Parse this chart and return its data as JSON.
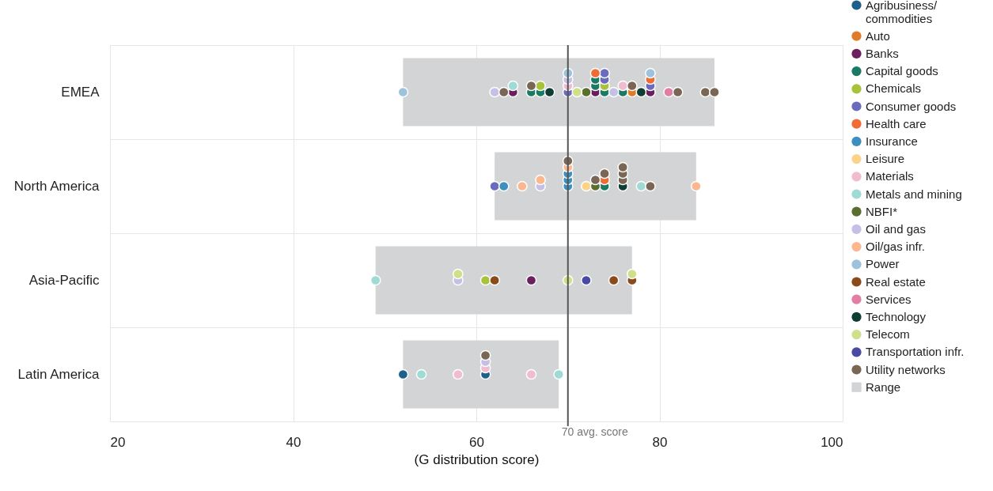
{
  "chart_data": {
    "type": "scatter",
    "orientation": "horizontal",
    "categories": [
      "EMEA",
      "North America",
      "Asia-Pacific",
      "Latin America"
    ],
    "xlim": [
      20,
      100
    ],
    "xticks": [
      20,
      40,
      60,
      80,
      100
    ],
    "xlabel": "(G distribution score)",
    "grid": true,
    "legend": "top right",
    "marker": "circle",
    "ref_lines": [
      {
        "axis": "x",
        "value": 70,
        "label": "70 avg. score",
        "color": "#555555"
      }
    ],
    "series": [
      {
        "name": "Agribusiness/ commodities",
        "color": "#1f5f8b",
        "x": [
          "Latin America",
          "Latin America"
        ],
        "values": [
          52,
          61
        ]
      },
      {
        "name": "Auto",
        "color": "#e07b28",
        "x": [
          "EMEA"
        ],
        "values": [
          77
        ]
      },
      {
        "name": "Banks",
        "color": "#6b1f5e",
        "x": [
          "EMEA",
          "EMEA",
          "EMEA",
          "Asia-Pacific"
        ],
        "values": [
          64,
          73,
          79,
          66
        ]
      },
      {
        "name": "Capital goods",
        "color": "#1b7a64",
        "x": [
          "EMEA",
          "EMEA",
          "EMEA",
          "EMEA",
          "EMEA",
          "EMEA",
          "North America"
        ],
        "values": [
          66,
          67,
          73,
          73,
          74,
          76,
          74
        ]
      },
      {
        "name": "Chemicals",
        "color": "#a8c23a",
        "x": [
          "EMEA",
          "EMEA",
          "Asia-Pacific"
        ],
        "values": [
          67,
          74,
          61
        ]
      },
      {
        "name": "Consumer goods",
        "color": "#6b6bbd",
        "x": [
          "EMEA",
          "EMEA",
          "EMEA",
          "EMEA",
          "North America"
        ],
        "values": [
          70,
          74,
          74,
          79,
          62
        ]
      },
      {
        "name": "Health care",
        "color": "#f06c35",
        "x": [
          "EMEA",
          "EMEA",
          "North America"
        ],
        "values": [
          73,
          79,
          74
        ]
      },
      {
        "name": "Insurance",
        "color": "#3d8fc0",
        "x": [
          "North America",
          "North America",
          "North America",
          "North America"
        ],
        "values": [
          63,
          70,
          70,
          70
        ]
      },
      {
        "name": "Leisure",
        "color": "#fdd389",
        "x": [
          "North America"
        ],
        "values": [
          72
        ]
      },
      {
        "name": "Materials",
        "color": "#f0bcd0",
        "x": [
          "EMEA",
          "EMEA",
          "Latin America",
          "Latin America",
          "Latin America"
        ],
        "values": [
          70,
          76,
          58,
          61,
          66
        ]
      },
      {
        "name": "Metals and mining",
        "color": "#9fdbd4",
        "x": [
          "EMEA",
          "North America",
          "Asia-Pacific",
          "Latin America",
          "Latin America"
        ],
        "values": [
          64,
          78,
          49,
          54,
          69
        ]
      },
      {
        "name": "NBFI*",
        "color": "#5a6e2e",
        "x": [
          "EMEA",
          "North America"
        ],
        "values": [
          72,
          73
        ]
      },
      {
        "name": "Oil and gas",
        "color": "#c4c0e6",
        "x": [
          "EMEA",
          "EMEA",
          "EMEA",
          "North America",
          "Asia-Pacific",
          "Latin America"
        ],
        "values": [
          62,
          70,
          75,
          67,
          58,
          61
        ]
      },
      {
        "name": "Oil/gas infr.",
        "color": "#fbb890",
        "x": [
          "North America",
          "North America",
          "North America",
          "North America"
        ],
        "values": [
          65,
          67,
          70,
          84
        ]
      },
      {
        "name": "Power",
        "color": "#9dc3dc",
        "x": [
          "EMEA",
          "EMEA",
          "EMEA"
        ],
        "values": [
          52,
          70,
          79
        ]
      },
      {
        "name": "Real estate",
        "color": "#8a4a1a",
        "x": [
          "Asia-Pacific",
          "Asia-Pacific",
          "Asia-Pacific"
        ],
        "values": [
          62,
          75,
          77
        ]
      },
      {
        "name": "Services",
        "color": "#e07ea4",
        "x": [
          "EMEA"
        ],
        "values": [
          81
        ]
      },
      {
        "name": "Technology",
        "color": "#0f3d33",
        "x": [
          "EMEA",
          "EMEA",
          "North America"
        ],
        "values": [
          68,
          78,
          76
        ]
      },
      {
        "name": "Telecom",
        "color": "#cfe08a",
        "x": [
          "EMEA",
          "Asia-Pacific",
          "Asia-Pacific",
          "Asia-Pacific"
        ],
        "values": [
          71,
          58,
          70,
          77
        ]
      },
      {
        "name": "Transportation infr.",
        "color": "#4a4aa5",
        "x": [
          "Asia-Pacific"
        ],
        "values": [
          72
        ]
      },
      {
        "name": "Utility networks",
        "color": "#7a6654",
        "x": [
          "EMEA",
          "EMEA",
          "EMEA",
          "EMEA",
          "EMEA",
          "EMEA",
          "North America",
          "North America",
          "North America",
          "North America",
          "North America",
          "North America",
          "North America",
          "Latin America"
        ],
        "values": [
          63,
          66,
          77,
          82,
          85,
          86,
          70,
          73,
          74,
          76,
          76,
          76,
          79,
          61
        ]
      },
      {
        "name": "Range",
        "type": "bar",
        "color": "#d3d4d5",
        "base": [
          52,
          62,
          49,
          52
        ],
        "values": [
          34,
          22,
          28,
          17
        ]
      }
    ]
  }
}
